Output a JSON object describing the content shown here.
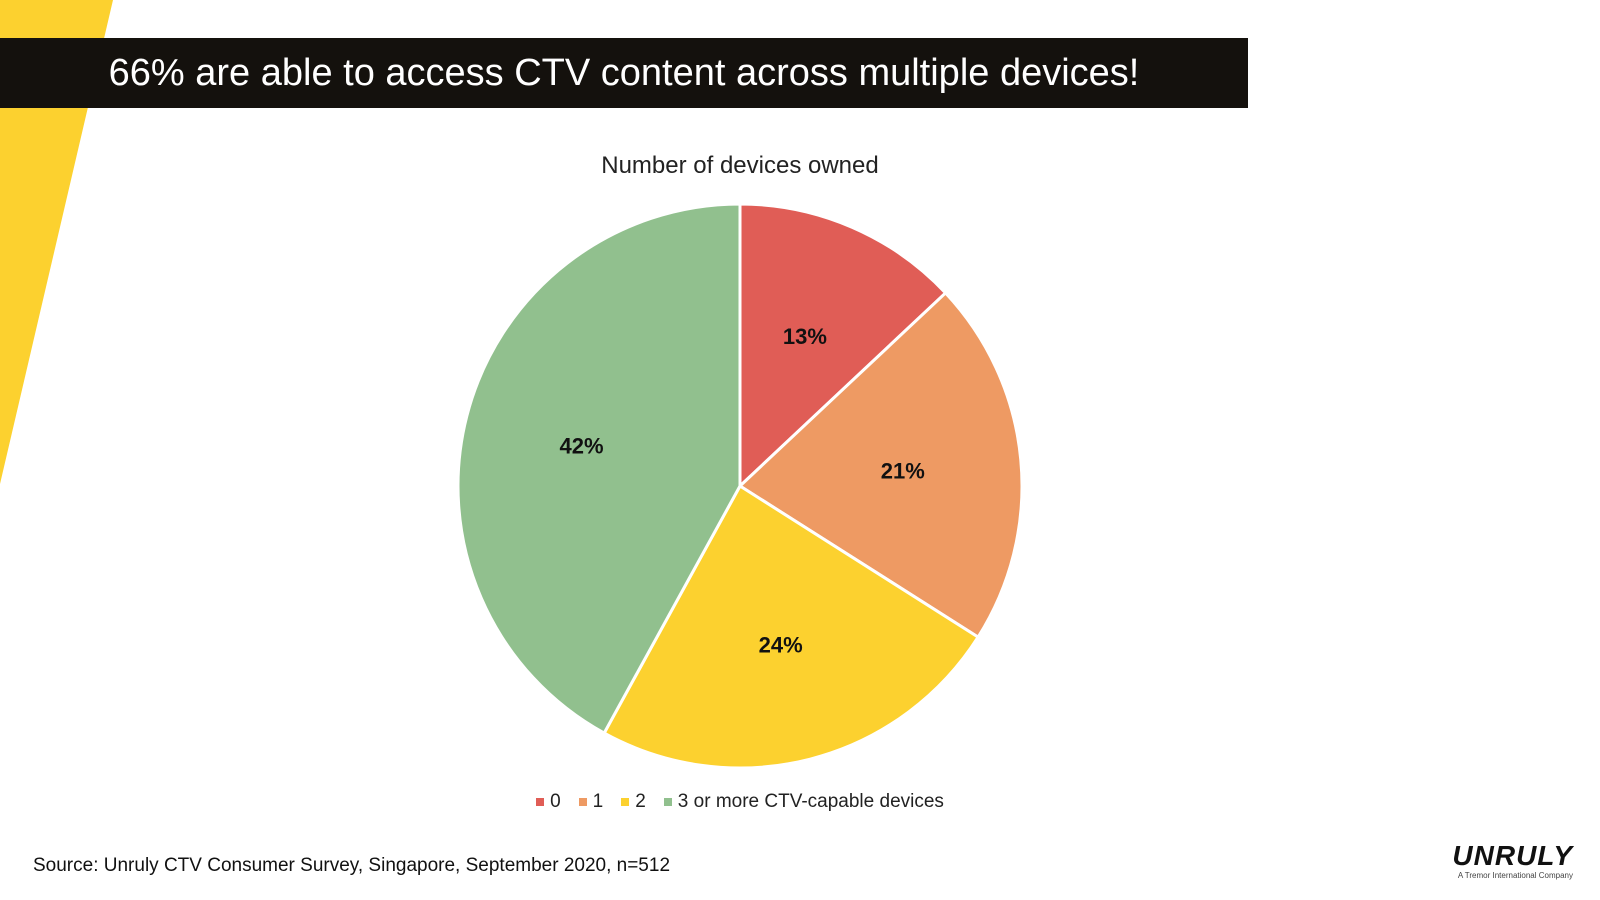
{
  "slide": {
    "headline": "66% are able to access CTV content across multiple devices!",
    "source": "Source: Unruly CTV Consumer Survey, Singapore, September 2020, n=512",
    "logo": {
      "wordmark": "UNRULY",
      "tagline": "A Tremor International Company"
    },
    "accent_color": "#fcd12f",
    "banner_color": "#14110d"
  },
  "chart_data": {
    "type": "pie",
    "title": "Number of devices owned",
    "categories": [
      "0",
      "1",
      "2",
      "3 or more CTV-capable devices"
    ],
    "values": [
      13,
      21,
      24,
      42
    ],
    "labels": [
      "13%",
      "21%",
      "24%",
      "42%"
    ],
    "colors": [
      "#e05d56",
      "#ee9a63",
      "#fcd12f",
      "#91c08e"
    ],
    "legend_position": "bottom"
  }
}
